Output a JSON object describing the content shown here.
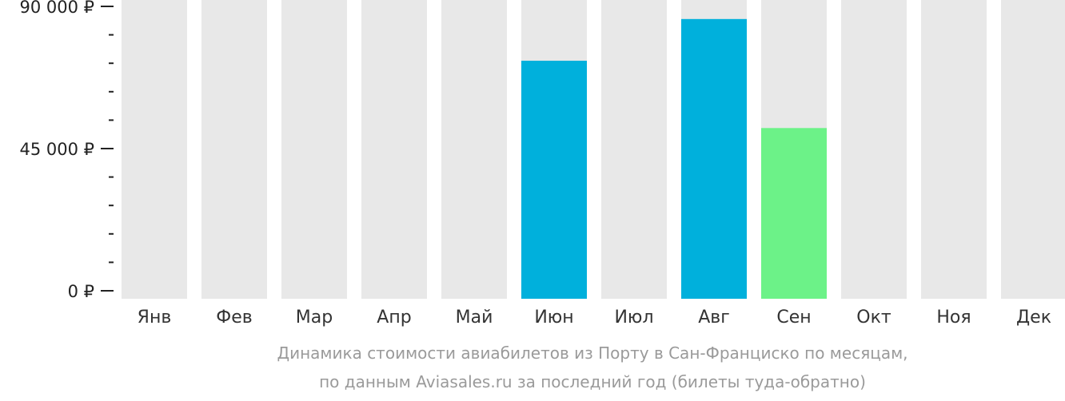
{
  "caption": {
    "line1": "Динамика стоимости авиабилетов из Порту в Сан-Франциско по месяцам,",
    "line2": "по данным Aviasales.ru за последний год (билеты туда-обратно)"
  },
  "colors": {
    "background_bar": "#e8e8e8",
    "high": "#00b0dc",
    "low": "#6cf288",
    "axis": "#222222"
  },
  "chart_data": {
    "type": "bar",
    "categories": [
      "Янв",
      "Фев",
      "Мар",
      "Апр",
      "Май",
      "Июн",
      "Июл",
      "Авг",
      "Сен",
      "Окт",
      "Ноя",
      "Дек"
    ],
    "values": [
      null,
      null,
      null,
      null,
      null,
      72800,
      null,
      86000,
      51500,
      null,
      null,
      null
    ],
    "bar_colors": [
      null,
      null,
      null,
      null,
      null,
      "#00b0dc",
      null,
      "#00b0dc",
      "#6cf288",
      null,
      null,
      null
    ],
    "ylim": [
      0,
      90000
    ],
    "yticks": [
      {
        "value": 0,
        "label": "0 ₽"
      },
      {
        "value": 45000,
        "label": "45 000 ₽"
      },
      {
        "value": 90000,
        "label": "90 000 ₽"
      }
    ],
    "minor_tick_step": 9000,
    "title": "",
    "xlabel": "",
    "ylabel": ""
  }
}
